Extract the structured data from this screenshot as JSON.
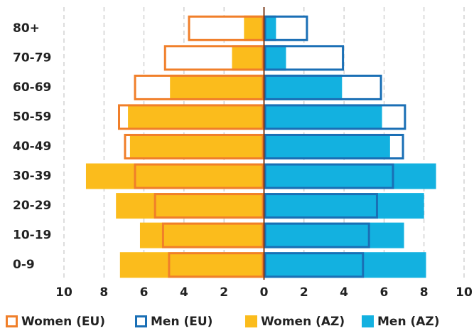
{
  "chart_data": {
    "type": "pyramid",
    "categories": [
      "80+",
      "70-79",
      "60-69",
      "50-59",
      "40-49",
      "30-39",
      "20-29",
      "10-19",
      "0-9"
    ],
    "series": [
      {
        "name": "Women (EU)",
        "color": "#f07f2a",
        "style": "outline",
        "values": [
          -3.8,
          -5.0,
          -6.5,
          -7.3,
          -7.0,
          -6.5,
          -5.5,
          -5.1,
          -4.8
        ]
      },
      {
        "name": "Men (EU)",
        "color": "#1a6fb5",
        "style": "outline",
        "values": [
          2.2,
          4.0,
          5.9,
          7.1,
          7.0,
          6.5,
          5.7,
          5.3,
          5.0
        ]
      },
      {
        "name": "Women (AZ)",
        "color": "#fbbc1c",
        "style": "filled",
        "values": [
          -1.0,
          -1.6,
          -4.7,
          -6.8,
          -6.7,
          -8.9,
          -7.4,
          -6.2,
          -7.2
        ]
      },
      {
        "name": "Men (AZ)",
        "color": "#13b1e0",
        "style": "filled",
        "values": [
          0.6,
          1.1,
          3.9,
          5.9,
          6.3,
          8.6,
          8.0,
          7.0,
          8.1
        ]
      }
    ],
    "xlim": [
      -10,
      10
    ],
    "xticks": [
      {
        "value": -10,
        "label": "10"
      },
      {
        "value": -8,
        "label": "8"
      },
      {
        "value": -6,
        "label": "6"
      },
      {
        "value": -4,
        "label": "4"
      },
      {
        "value": -2,
        "label": "2"
      },
      0,
      2,
      4,
      6,
      8,
      10
    ],
    "grid": true
  }
}
